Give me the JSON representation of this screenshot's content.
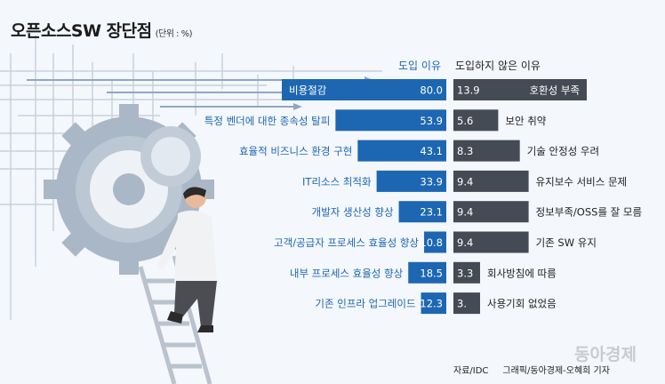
{
  "title": "오픈소스SW 장단점",
  "unit": "(단위 : %)",
  "source": "자료/IDC",
  "credit": "그래픽/동아경제-오혜희 기자",
  "watermark": "동아경제",
  "colors": {
    "left_bar": "#1d67b2",
    "right_bar": "#454b55",
    "left_text": "#1d67b2",
    "right_text": "#222222",
    "background": "#f4f7fb"
  },
  "chart_data": [
    {
      "type": "bar",
      "title": "도입 이유",
      "categories": [
        "비용절감",
        "특정 벤더에 대한 종속성 탈피",
        "효율적 비즈니스 환경 구현",
        "IT리소스 최적화",
        "개발자 생산성 향상",
        "고객/공급자 프로세스 효율성 향상",
        "내부 프로세스 효율성 향상",
        "기존 인프라 업그레이드"
      ],
      "values": [
        80.0,
        53.9,
        43.1,
        33.9,
        23.1,
        10.8,
        18.5,
        12.3
      ],
      "value_labels": [
        "80.0",
        "53.9",
        "43.1",
        "33.9",
        "23.1",
        "10.8",
        "18.5",
        "12.3"
      ]
    },
    {
      "type": "bar",
      "title": "도입하지 않은 이유",
      "categories": [
        "호환성 부족",
        "보안 취약",
        "기술 안정성 우려",
        "유지보수 서비스 문제",
        "정보부족/OSS를 잘 모름",
        "기존 SW 유지",
        "회사방침에 따름",
        "사용기회 없었음"
      ],
      "values": [
        13.9,
        5.6,
        8.3,
        9.4,
        9.4,
        9.4,
        3.3,
        3.0
      ],
      "value_labels": [
        "13.9",
        "5.6",
        "8.3",
        "9.4",
        "9.4",
        "9.4",
        "3.3",
        "3."
      ]
    }
  ]
}
